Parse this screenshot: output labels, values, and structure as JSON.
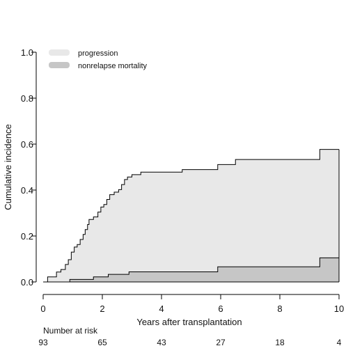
{
  "chart_data": {
    "type": "area",
    "xlabel": "Years after transplantation",
    "ylabel": "Cumulative incidence",
    "xlim": [
      0,
      10
    ],
    "ylim": [
      0,
      1
    ],
    "x_ticks": [
      "0",
      "2",
      "4",
      "6",
      "8",
      "10"
    ],
    "y_ticks": [
      "0.0",
      "0.2",
      "0.4",
      "0.6",
      "0.8",
      "1.0"
    ],
    "legend_placement": "top-left",
    "grid": false,
    "series": [
      {
        "name": "progression",
        "color": "#e8e8e8",
        "style": "stacked-step",
        "points": [
          [
            0,
            0
          ],
          [
            0.15,
            0.022
          ],
          [
            0.45,
            0.043
          ],
          [
            0.6,
            0.054
          ],
          [
            0.75,
            0.076
          ],
          [
            0.85,
            0.097
          ],
          [
            0.95,
            0.13
          ],
          [
            1.05,
            0.152
          ],
          [
            1.15,
            0.163
          ],
          [
            1.25,
            0.185
          ],
          [
            1.35,
            0.207
          ],
          [
            1.42,
            0.228
          ],
          [
            1.5,
            0.25
          ],
          [
            1.55,
            0.272
          ],
          [
            1.7,
            0.283
          ],
          [
            1.85,
            0.304
          ],
          [
            1.95,
            0.326
          ],
          [
            2.05,
            0.337
          ],
          [
            2.15,
            0.359
          ],
          [
            2.25,
            0.38
          ],
          [
            2.4,
            0.391
          ],
          [
            2.55,
            0.402
          ],
          [
            2.65,
            0.424
          ],
          [
            2.75,
            0.446
          ],
          [
            2.85,
            0.457
          ],
          [
            3.0,
            0.467
          ],
          [
            3.3,
            0.478
          ],
          [
            4.7,
            0.489
          ],
          [
            5.9,
            0.511
          ],
          [
            6.5,
            0.533
          ],
          [
            9.35,
            0.577
          ],
          [
            10,
            0.577
          ]
        ]
      },
      {
        "name": "nonrelapse mortality",
        "color": "#c6c6c6",
        "style": "step",
        "points": [
          [
            0,
            0
          ],
          [
            0.9,
            0.011
          ],
          [
            1.7,
            0.022
          ],
          [
            2.2,
            0.033
          ],
          [
            2.9,
            0.044
          ],
          [
            5.9,
            0.066
          ],
          [
            9.35,
            0.105
          ],
          [
            10,
            0.105
          ]
        ]
      }
    ],
    "risk_table": {
      "title": "Number at risk",
      "x": [
        0,
        2,
        4,
        6,
        8,
        10
      ],
      "values": [
        "93",
        "65",
        "43",
        "27",
        "18",
        "4"
      ]
    }
  }
}
